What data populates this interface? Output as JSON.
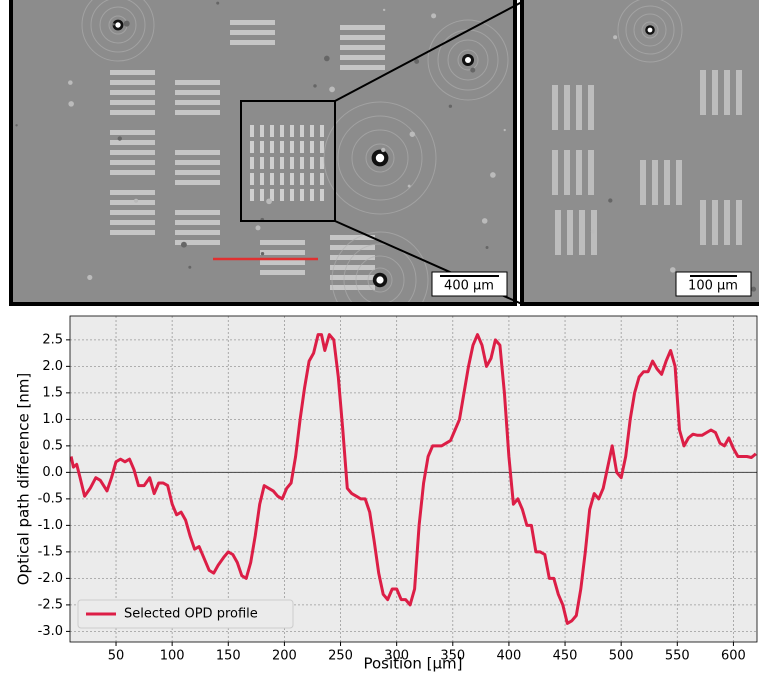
{
  "images": [
    {
      "scale_bar": "400 µm"
    },
    {
      "scale_bar": "100 µm"
    }
  ],
  "chart_data": {
    "type": "line",
    "xlabel": "Position [µm]",
    "ylabel": "Optical path difference [nm]",
    "xlim": [
      9,
      621
    ],
    "ylim": [
      -3.2,
      2.95
    ],
    "xticks": [
      50,
      100,
      150,
      200,
      250,
      300,
      350,
      400,
      450,
      500,
      550,
      600
    ],
    "yticks": [
      2.5,
      {
        "value": 2,
        "label": "2.0"
      },
      1.5,
      {
        "value": 1,
        "label": "1.0"
      },
      0.5,
      {
        "value": 0,
        "label": "0.0"
      },
      -0.5,
      {
        "value": -1,
        "label": "-1.0"
      },
      -1.5,
      {
        "value": -2,
        "label": "-2.0"
      },
      -2.5,
      {
        "value": -3,
        "label": "-3.0"
      }
    ],
    "grid": true,
    "legend": "lower left",
    "x": [
      10,
      12,
      15,
      18,
      22,
      27,
      32,
      36,
      42,
      46,
      50,
      54,
      58,
      62,
      66,
      70,
      75,
      80,
      84,
      88,
      92,
      96,
      100,
      104,
      108,
      112,
      116,
      120,
      124,
      128,
      133,
      137,
      141,
      146,
      150,
      154,
      158,
      162,
      166,
      170,
      174,
      178,
      182,
      186,
      190,
      194,
      198,
      202,
      206,
      210,
      214,
      218,
      222,
      226,
      230,
      233,
      236,
      240,
      244,
      248,
      252,
      256,
      260,
      264,
      268,
      272,
      276,
      280,
      284,
      288,
      292,
      296,
      300,
      304,
      308,
      312,
      316,
      320,
      324,
      328,
      332,
      336,
      340,
      344,
      348,
      352,
      356,
      360,
      364,
      368,
      372,
      376,
      380,
      384,
      388,
      392,
      396,
      400,
      404,
      408,
      412,
      416,
      420,
      424,
      428,
      432,
      436,
      440,
      444,
      448,
      452,
      456,
      460,
      464,
      468,
      472,
      476,
      480,
      484,
      488,
      492,
      496,
      500,
      504,
      508,
      512,
      516,
      520,
      524,
      528,
      532,
      536,
      540,
      544,
      548,
      552,
      556,
      560,
      564,
      568,
      572,
      576,
      580,
      584,
      588,
      592,
      596,
      600,
      604,
      608,
      612,
      616,
      620
    ],
    "series": [
      {
        "name": "Selected OPD profile",
        "color": "#dc1e46",
        "values": [
          0.3,
          0.1,
          0.15,
          -0.1,
          -0.45,
          -0.3,
          -0.1,
          -0.15,
          -0.35,
          -0.1,
          0.2,
          0.25,
          0.2,
          0.25,
          0.05,
          -0.25,
          -0.25,
          -0.1,
          -0.4,
          -0.2,
          -0.2,
          -0.25,
          -0.6,
          -0.8,
          -0.75,
          -0.9,
          -1.2,
          -1.45,
          -1.4,
          -1.6,
          -1.85,
          -1.9,
          -1.75,
          -1.6,
          -1.5,
          -1.55,
          -1.7,
          -1.95,
          -2.0,
          -1.7,
          -1.2,
          -0.6,
          -0.25,
          -0.3,
          -0.35,
          -0.45,
          -0.5,
          -0.3,
          -0.2,
          0.3,
          1.0,
          1.6,
          2.1,
          2.25,
          2.6,
          2.6,
          2.3,
          2.6,
          2.5,
          1.8,
          0.8,
          -0.3,
          -0.4,
          -0.45,
          -0.5,
          -0.5,
          -0.75,
          -1.3,
          -1.9,
          -2.3,
          -2.4,
          -2.2,
          -2.2,
          -2.4,
          -2.4,
          -2.5,
          -2.2,
          -1.0,
          -0.2,
          0.3,
          0.5,
          0.5,
          0.5,
          0.55,
          0.6,
          0.8,
          1.0,
          1.5,
          2.0,
          2.4,
          2.6,
          2.4,
          2.0,
          2.15,
          2.5,
          2.4,
          1.5,
          0.3,
          -0.6,
          -0.5,
          -0.7,
          -1.0,
          -1.0,
          -1.5,
          -1.5,
          -1.55,
          -2.0,
          -2.0,
          -2.3,
          -2.5,
          -2.85,
          -2.8,
          -2.7,
          -2.2,
          -1.5,
          -0.7,
          -0.4,
          -0.5,
          -0.3,
          0.1,
          0.5,
          0.0,
          -0.1,
          0.3,
          1.0,
          1.5,
          1.8,
          1.9,
          1.9,
          2.1,
          1.95,
          1.85,
          2.1,
          2.3,
          2.0,
          0.8,
          0.5,
          0.65,
          0.72,
          0.7,
          0.7,
          0.75,
          0.8,
          0.75,
          0.55,
          0.5,
          0.65,
          0.45,
          0.3,
          0.3,
          0.3,
          0.28,
          0.35
        ]
      }
    ]
  }
}
